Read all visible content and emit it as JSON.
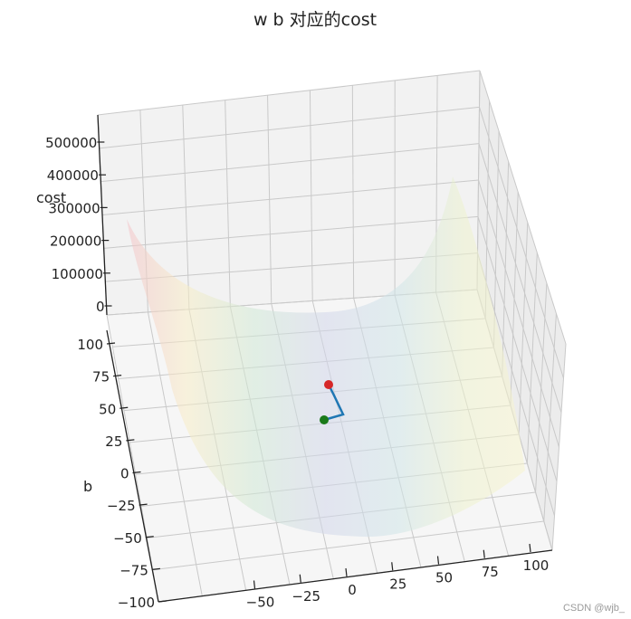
{
  "chart_data": {
    "type": "surface3d",
    "title": "w b 对应的cost",
    "xlabel": "",
    "ylabel": "b",
    "zlabel": "cost",
    "x_ticks": [
      "−50",
      "−25",
      "0",
      "25",
      "50",
      "75",
      "100"
    ],
    "y_ticks": [
      "100",
      "75",
      "50",
      "25",
      "0",
      "−25",
      "−50",
      "−75",
      "−100"
    ],
    "z_ticks": [
      "500000",
      "400000",
      "300000",
      "200000",
      "100000",
      "0"
    ],
    "xlim": [
      -100,
      100
    ],
    "ylim": [
      -100,
      100
    ],
    "zlim": [
      0,
      500000
    ],
    "grid": true,
    "surface_colormap": "Spectral",
    "path": {
      "start_marker_color": "#d62728",
      "end_marker_color": "#1a7a1a",
      "line_color": "#1f77b4"
    }
  },
  "watermark": "CSDN @wjb_"
}
